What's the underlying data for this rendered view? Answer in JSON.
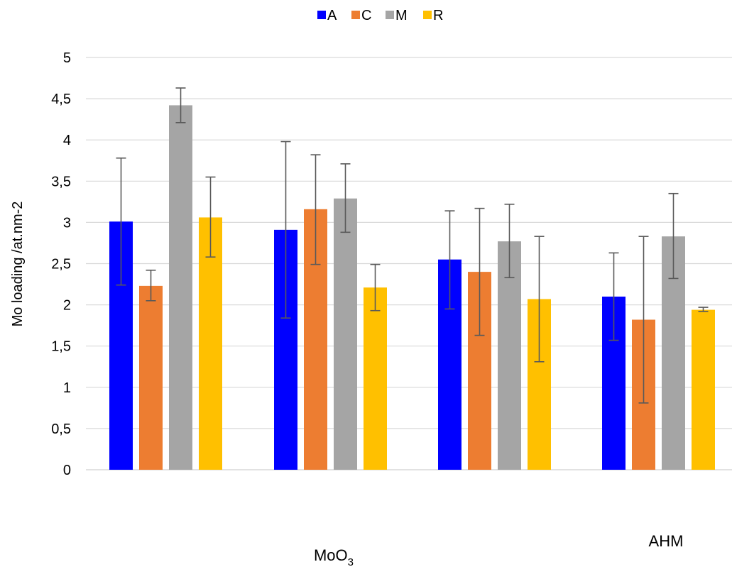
{
  "chart_data": {
    "type": "bar",
    "ylabel": "Mo loading /at.nm-2",
    "ylim": [
      0,
      5
    ],
    "yticks": [
      0,
      0.5,
      1,
      1.5,
      2,
      2.5,
      3,
      3.5,
      4,
      4.5,
      5
    ],
    "ytick_labels": [
      "0",
      "0,5",
      "1",
      "1,5",
      "2",
      "2,5",
      "3",
      "3,5",
      "4",
      "4,5",
      "5"
    ],
    "grid": true,
    "legend_position": "top-center",
    "group_labels": {
      "moo3": {
        "main": "MoO",
        "sub": "3"
      },
      "ahm": "AHM"
    },
    "series": [
      {
        "name": "A",
        "color": "#0000ff",
        "values": [
          3.01,
          2.91,
          2.55,
          2.1
        ],
        "err_low": [
          2.24,
          1.84,
          1.95,
          1.57
        ],
        "err_high": [
          3.78,
          3.98,
          3.14,
          2.63
        ]
      },
      {
        "name": "C",
        "color": "#ed7d31",
        "values": [
          2.23,
          3.16,
          2.4,
          1.82
        ],
        "err_low": [
          2.05,
          2.49,
          1.63,
          0.81
        ],
        "err_high": [
          2.42,
          3.82,
          3.17,
          2.83
        ]
      },
      {
        "name": "M",
        "color": "#a5a5a5",
        "values": [
          4.42,
          3.29,
          2.77,
          2.83
        ],
        "err_low": [
          4.21,
          2.88,
          2.33,
          2.32
        ],
        "err_high": [
          4.63,
          3.71,
          3.22,
          3.35
        ]
      },
      {
        "name": "R",
        "color": "#ffc000",
        "values": [
          3.06,
          2.21,
          2.07,
          1.94
        ],
        "err_low": [
          2.58,
          1.93,
          1.31,
          1.92
        ],
        "err_high": [
          3.55,
          2.49,
          2.83,
          1.97
        ]
      }
    ]
  }
}
